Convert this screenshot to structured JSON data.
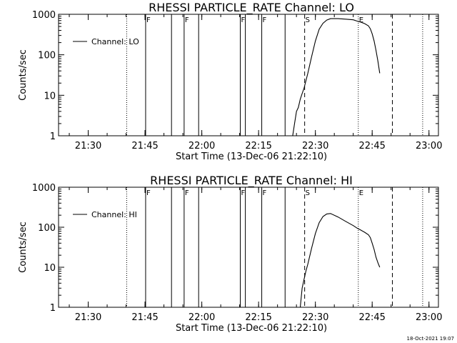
{
  "footer_stamp": "18-Oct-2021 19:07",
  "chart_data": [
    {
      "type": "line",
      "title": "RHESSI PARTICLE_RATE Channel: LO",
      "xlabel": "Start Time (13-Dec-06 21:22:10)",
      "ylabel": "Counts/sec",
      "y_scale": "log",
      "ylim": [
        1,
        1000
      ],
      "xlim": [
        "21:22:10",
        "23:02:30"
      ],
      "x_tick_labels": [
        "21:30",
        "21:45",
        "22:00",
        "22:15",
        "22:30",
        "22:45",
        "23:00"
      ],
      "y_tick_labels": [
        "1",
        "10",
        "100",
        "1000"
      ],
      "legend": {
        "position": "top-left",
        "entries": [
          "Channel: LO"
        ]
      },
      "flag_markers": [
        {
          "time": "21:45:10",
          "label": "F",
          "style": "solid"
        },
        {
          "time": "21:52:00",
          "label": "",
          "style": "solid"
        },
        {
          "time": "21:55:20",
          "label": "F",
          "style": "solid"
        },
        {
          "time": "21:59:10",
          "label": "",
          "style": "solid"
        },
        {
          "time": "22:10:10",
          "label": "F",
          "style": "solid"
        },
        {
          "time": "22:11:30",
          "label": "",
          "style": "solid"
        },
        {
          "time": "22:15:50",
          "label": "F",
          "style": "solid"
        },
        {
          "time": "22:22:00",
          "label": "",
          "style": "solid"
        }
      ],
      "dashed_markers": [
        {
          "time": "22:27:10",
          "label": "S"
        },
        {
          "time": "22:50:20",
          "label": ""
        }
      ],
      "dotted_markers": [
        {
          "time": "21:40:10",
          "label": ""
        },
        {
          "time": "22:41:20",
          "label": "E"
        },
        {
          "time": "22:58:20",
          "label": ""
        }
      ],
      "series": [
        {
          "name": "Channel: LO",
          "x": [
            "22:24:00",
            "22:24:30",
            "22:25:00",
            "22:25:30",
            "22:26:00",
            "22:26:30",
            "22:27:00",
            "22:28:00",
            "22:29:00",
            "22:30:00",
            "22:31:00",
            "22:32:00",
            "22:33:00",
            "22:34:00",
            "22:36:00",
            "22:38:00",
            "22:40:00",
            "22:41:00",
            "22:42:00",
            "22:43:00",
            "22:44:00",
            "22:44:30",
            "22:45:00",
            "22:45:30",
            "22:46:00",
            "22:46:30",
            "22:47:00"
          ],
          "values": [
            1,
            2,
            4,
            5,
            8,
            11,
            15,
            35,
            90,
            220,
            430,
            600,
            720,
            780,
            780,
            760,
            730,
            680,
            640,
            590,
            520,
            440,
            330,
            220,
            130,
            70,
            35
          ]
        }
      ]
    },
    {
      "type": "line",
      "title": "RHESSI PARTICLE_RATE Channel: HI",
      "xlabel": "Start Time (13-Dec-06 21:22:10)",
      "ylabel": "Counts/sec",
      "y_scale": "log",
      "ylim": [
        1,
        1000
      ],
      "xlim": [
        "21:22:10",
        "23:02:30"
      ],
      "x_tick_labels": [
        "21:30",
        "21:45",
        "22:00",
        "22:15",
        "22:30",
        "22:45",
        "23:00"
      ],
      "y_tick_labels": [
        "1",
        "10",
        "100",
        "1000"
      ],
      "legend": {
        "position": "top-left",
        "entries": [
          "Channel: HI"
        ]
      },
      "flag_markers": [
        {
          "time": "21:45:10",
          "label": "F",
          "style": "solid"
        },
        {
          "time": "21:52:00",
          "label": "",
          "style": "solid"
        },
        {
          "time": "21:55:20",
          "label": "F",
          "style": "solid"
        },
        {
          "time": "21:59:10",
          "label": "",
          "style": "solid"
        },
        {
          "time": "22:10:10",
          "label": "F",
          "style": "solid"
        },
        {
          "time": "22:11:30",
          "label": "",
          "style": "solid"
        },
        {
          "time": "22:15:50",
          "label": "F",
          "style": "solid"
        },
        {
          "time": "22:22:00",
          "label": "",
          "style": "solid"
        }
      ],
      "dashed_markers": [
        {
          "time": "22:27:10",
          "label": "S"
        },
        {
          "time": "22:50:20",
          "label": ""
        }
      ],
      "dotted_markers": [
        {
          "time": "21:40:10",
          "label": ""
        },
        {
          "time": "22:41:20",
          "label": "E"
        },
        {
          "time": "22:58:20",
          "label": ""
        }
      ],
      "series": [
        {
          "name": "Channel: HI",
          "x": [
            "22:26:00",
            "22:26:30",
            "22:27:00",
            "22:27:30",
            "22:28:00",
            "22:29:00",
            "22:30:00",
            "22:31:00",
            "22:32:00",
            "22:33:00",
            "22:34:00",
            "22:36:00",
            "22:38:00",
            "22:40:00",
            "22:41:00",
            "22:42:00",
            "22:43:00",
            "22:44:00",
            "22:44:30",
            "22:45:00",
            "22:45:30",
            "22:46:00",
            "22:46:30",
            "22:47:00"
          ],
          "values": [
            1,
            3,
            5,
            8,
            12,
            30,
            70,
            130,
            185,
            215,
            220,
            180,
            140,
            110,
            95,
            85,
            75,
            65,
            55,
            40,
            28,
            18,
            13,
            10
          ]
        }
      ]
    }
  ]
}
